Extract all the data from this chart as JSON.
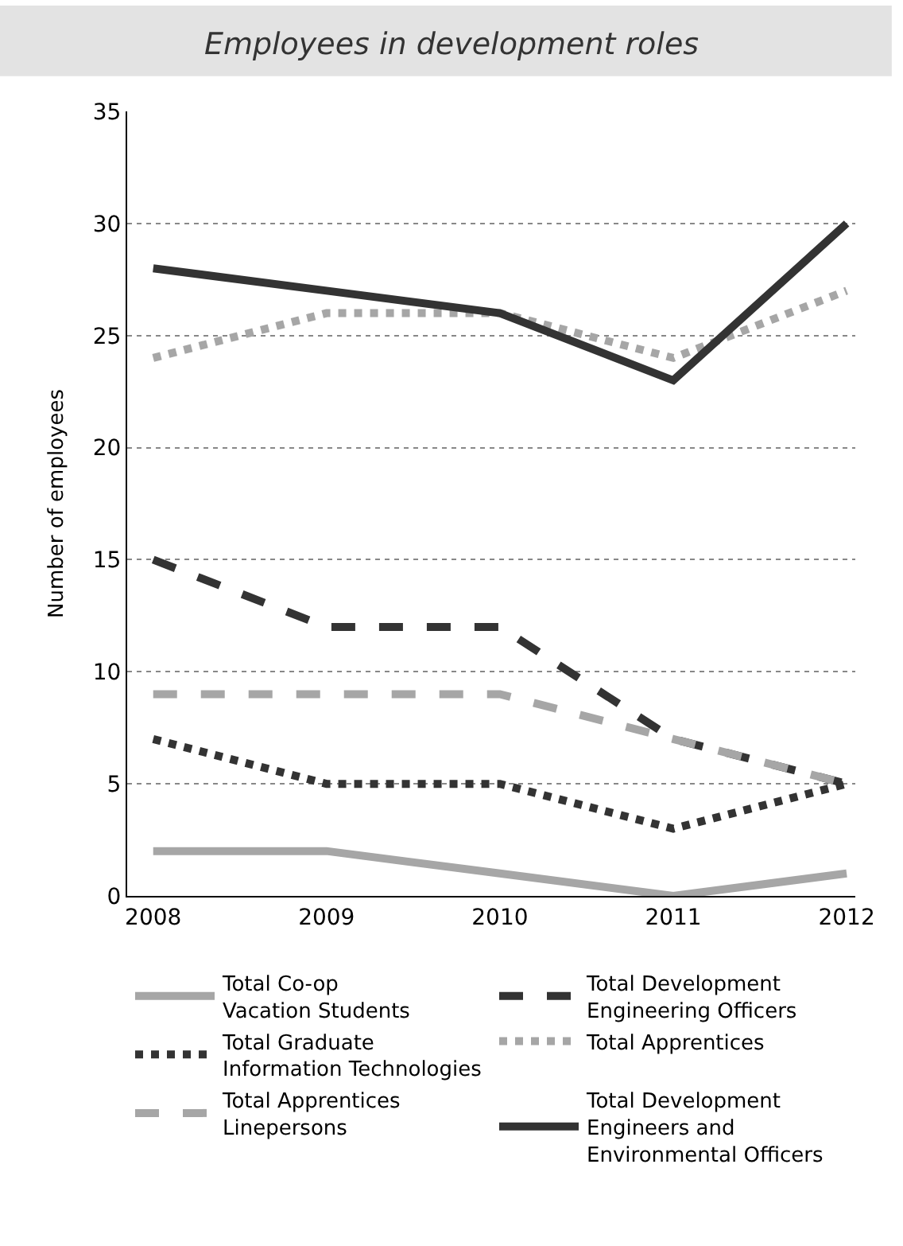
{
  "chart_data": {
    "type": "line",
    "title": "Employees in development roles",
    "ylabel": "Number of employees",
    "categories": [
      "2008",
      "2009",
      "2010",
      "2011",
      "2012"
    ],
    "series": [
      {
        "name": "Total Co-op\nVacation Students",
        "color": "#a6a6a6",
        "line_style": "solid",
        "values": [
          2,
          2,
          1,
          0,
          1
        ]
      },
      {
        "name": "Total Development\nEngineering Officers",
        "color": "#333333",
        "line_style": "dashed",
        "values": [
          15,
          12,
          12,
          7,
          5
        ]
      },
      {
        "name": "Total Graduate\nInformation Technologies",
        "color": "#333333",
        "line_style": "dotted",
        "values": [
          7,
          5,
          5,
          3,
          5
        ]
      },
      {
        "name": "Total Apprentices",
        "color": "#a6a6a6",
        "line_style": "dotted",
        "values": [
          24,
          26,
          26,
          24,
          27
        ]
      },
      {
        "name": "Total Apprentices\nLinepersons",
        "color": "#a6a6a6",
        "line_style": "dashed",
        "values": [
          9,
          9,
          9,
          7,
          5
        ]
      },
      {
        "name": "Total Development\nEngineers and\nEnvironmental Officers",
        "color": "#333333",
        "line_style": "solid",
        "values": [
          28,
          27,
          26,
          23,
          30
        ]
      }
    ],
    "ylim": [
      0,
      35
    ],
    "yticks": [
      0,
      5,
      10,
      15,
      20,
      25,
      30,
      35
    ],
    "grid": "y",
    "legend": "bottom",
    "marker": "none"
  }
}
